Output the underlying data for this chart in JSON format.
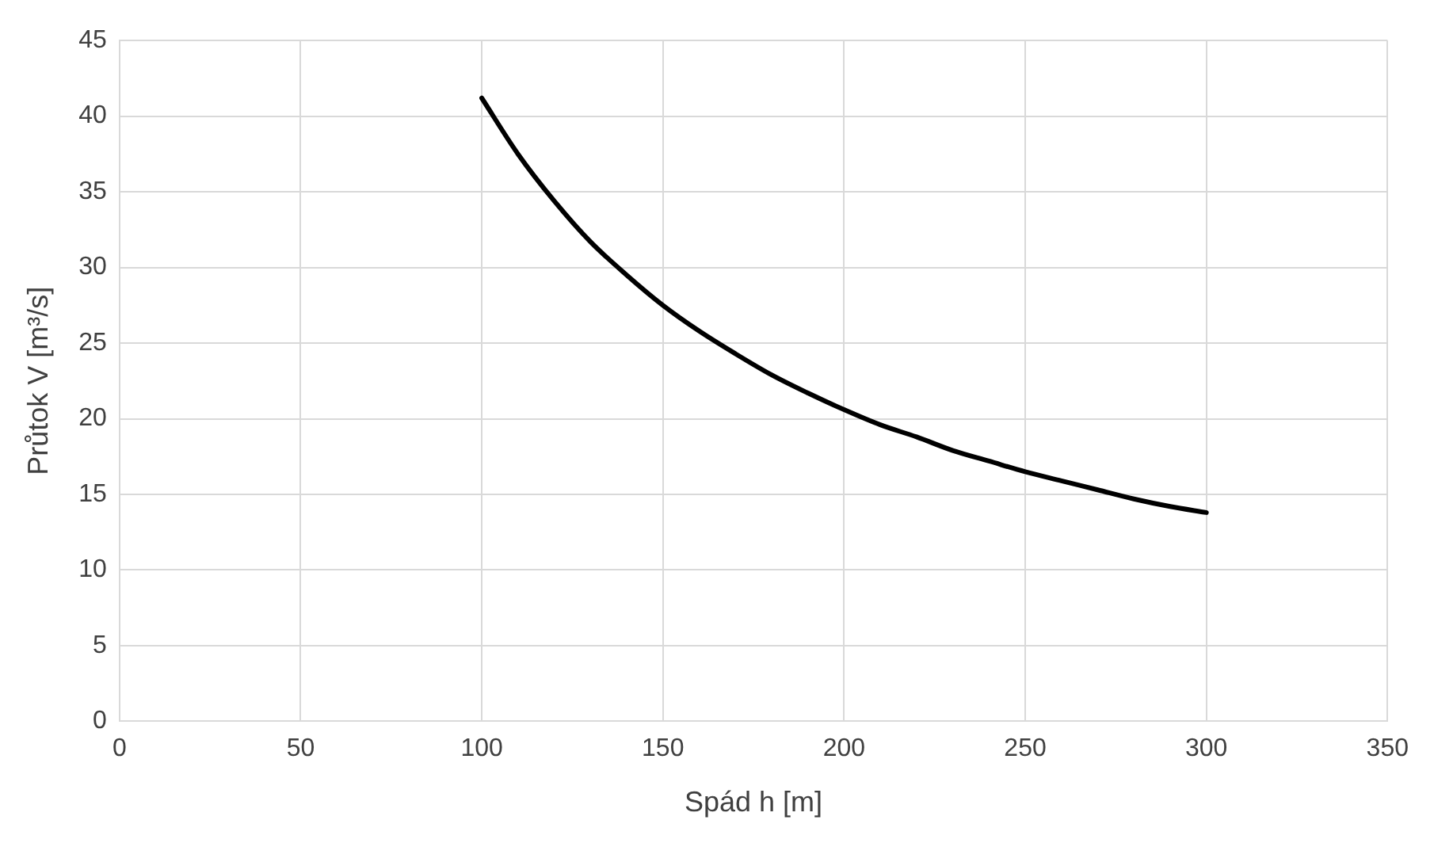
{
  "chart_data": {
    "type": "line",
    "xlabel": "Spád h [m]",
    "ylabel": "Průtok V [m³/s]",
    "x": [
      100,
      110,
      120,
      130,
      140,
      150,
      160,
      170,
      180,
      190,
      200,
      210,
      220,
      230,
      240,
      250,
      260,
      270,
      280,
      290,
      300
    ],
    "series": [
      {
        "color": "#000000",
        "values": [
          41.2,
          37.5,
          34.4,
          31.7,
          29.5,
          27.5,
          25.8,
          24.3,
          22.9,
          21.7,
          20.6,
          19.6,
          18.8,
          17.9,
          17.2,
          16.5,
          15.9,
          15.3,
          14.7,
          14.2,
          13.8
        ]
      }
    ],
    "xlim": [
      0,
      350
    ],
    "xticks": [
      0,
      50,
      100,
      150,
      200,
      250,
      300,
      350
    ],
    "ylim": [
      0,
      45
    ],
    "yticks": [
      0,
      5,
      10,
      15,
      20,
      25,
      30,
      35,
      40,
      45
    ],
    "grid": true,
    "legend": false,
    "marker": "none",
    "line_style": "solid"
  }
}
